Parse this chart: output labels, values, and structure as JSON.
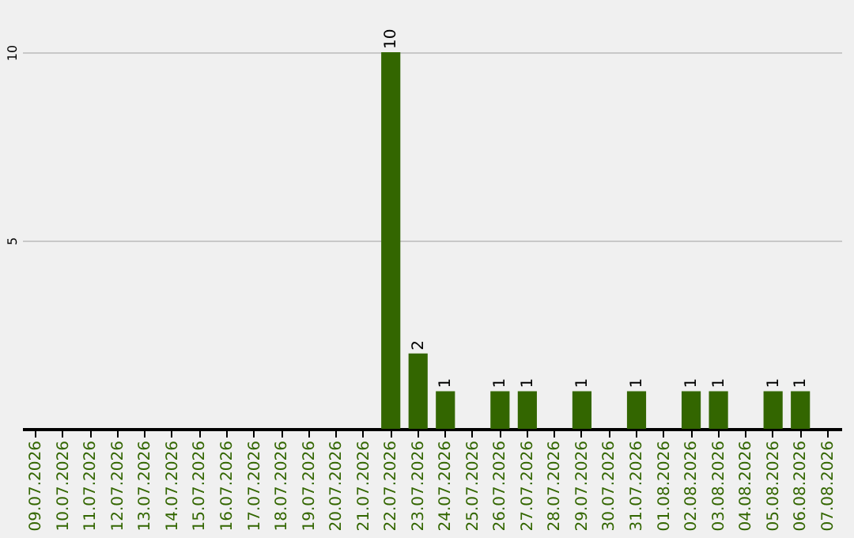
{
  "chart_data": {
    "type": "bar",
    "categories": [
      "09.07.2026",
      "10.07.2026",
      "11.07.2026",
      "12.07.2026",
      "13.07.2026",
      "14.07.2026",
      "15.07.2026",
      "16.07.2026",
      "17.07.2026",
      "18.07.2026",
      "19.07.2026",
      "20.07.2026",
      "21.07.2026",
      "22.07.2026",
      "23.07.2026",
      "24.07.2026",
      "25.07.2026",
      "26.07.2026",
      "27.07.2026",
      "28.07.2026",
      "29.07.2026",
      "30.07.2026",
      "31.07.2026",
      "01.08.2026",
      "02.08.2026",
      "03.08.2026",
      "04.08.2026",
      "05.08.2026",
      "06.08.2026",
      "07.08.2026"
    ],
    "values": [
      0,
      0,
      0,
      0,
      0,
      0,
      0,
      0,
      0,
      0,
      0,
      0,
      0,
      10,
      2,
      1,
      0,
      1,
      1,
      0,
      1,
      0,
      1,
      0,
      1,
      1,
      0,
      1,
      1,
      0
    ],
    "value_labels": [
      null,
      null,
      null,
      null,
      null,
      null,
      null,
      null,
      null,
      null,
      null,
      null,
      null,
      "10",
      "2",
      "1",
      null,
      "1",
      "1",
      null,
      "1",
      null,
      "1",
      null,
      "1",
      "1",
      null,
      "1",
      "1",
      null
    ],
    "color": "#336600",
    "ylim": [
      0,
      10
    ],
    "yticks": [
      5,
      10
    ],
    "grid": "y"
  }
}
